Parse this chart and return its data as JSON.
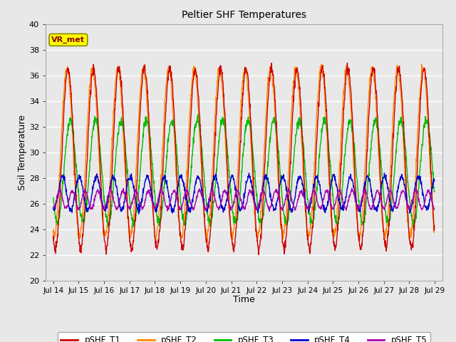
{
  "title": "Peltier SHF Temperatures",
  "xlabel": "Time",
  "ylabel": "Soil Temperature",
  "xlim_days": [
    13.7,
    29.3
  ],
  "ylim": [
    20,
    40
  ],
  "yticks": [
    20,
    22,
    24,
    26,
    28,
    30,
    32,
    34,
    36,
    38,
    40
  ],
  "xtick_labels": [
    "Jul 14",
    "Jul 15",
    "Jul 16",
    "Jul 17",
    "Jul 18",
    "Jul 19",
    "Jul 20",
    "Jul 21",
    "Jul 22",
    "Jul 23",
    "Jul 24",
    "Jul 25",
    "Jul 26",
    "Jul 27",
    "Jul 28",
    "Jul 29"
  ],
  "xtick_positions": [
    14,
    15,
    16,
    17,
    18,
    19,
    20,
    21,
    22,
    23,
    24,
    25,
    26,
    27,
    28,
    29
  ],
  "series_colors": [
    "#cc0000",
    "#ff8800",
    "#00bb00",
    "#0000cc",
    "#aa00aa"
  ],
  "series_labels": [
    "pSHF_T1",
    "pSHF_T2",
    "pSHF_T3",
    "pSHF_T4",
    "pSHF_T5"
  ],
  "vr_met_label": "VR_met",
  "vr_met_box_color": "#ffff00",
  "vr_met_text_color": "#880000",
  "fig_facecolor": "#e8e8e8",
  "plot_facecolor": "#e8e8e8",
  "grid_color": "#ffffff",
  "linewidth": 1.0,
  "T1_amplitude": 7.0,
  "T1_mean": 29.5,
  "T2_amplitude": 6.5,
  "T2_mean": 30.0,
  "T3_amplitude": 4.0,
  "T3_mean": 28.5,
  "T4_amplitude": 1.3,
  "T4_mean": 26.8,
  "T5_amplitude": 0.7,
  "T5_mean": 26.3,
  "samples_per_day": 96
}
